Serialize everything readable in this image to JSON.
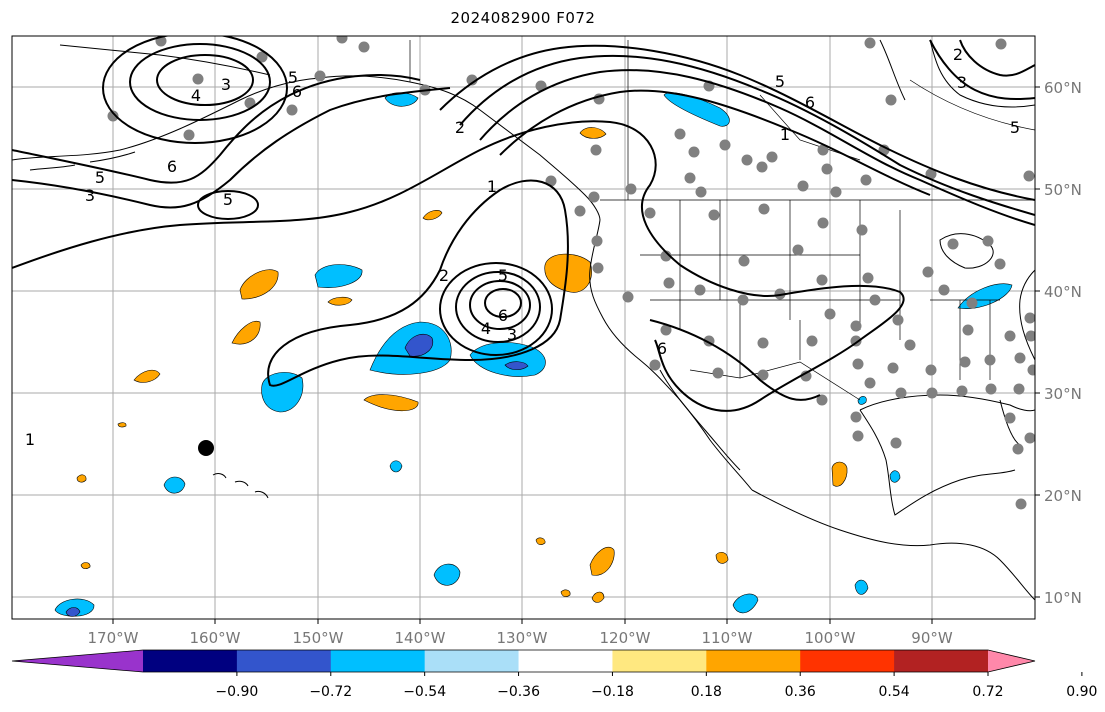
{
  "title": "2024082900 F072",
  "map": {
    "lon_labels": [
      "170°W",
      "160°W",
      "150°W",
      "140°W",
      "130°W",
      "120°W",
      "110°W",
      "100°W",
      "90°W"
    ],
    "lat_labels": [
      "60°N",
      "50°N",
      "40°N",
      "30°N",
      "20°N",
      "10°N"
    ],
    "contour_labels": [
      "3",
      "4",
      "5",
      "6",
      "6",
      "5",
      "3",
      "5",
      "2",
      "1",
      "2",
      "5",
      "6",
      "4",
      "3",
      "5",
      "6",
      "1",
      "3",
      "1",
      "2",
      "5",
      "6"
    ]
  },
  "colorbar": {
    "ticks": [
      "−0.90",
      "−0.72",
      "−0.54",
      "−0.36",
      "−0.18",
      "0.18",
      "0.36",
      "0.54",
      "0.72",
      "0.90"
    ],
    "colors": [
      "#9933cc",
      "#000080",
      "#3355cc",
      "#00bfff",
      "#aadff8",
      "#ffffff",
      "#ffe880",
      "#ffa500",
      "#ff3300",
      "#b22222",
      "#ff88aa"
    ]
  }
}
